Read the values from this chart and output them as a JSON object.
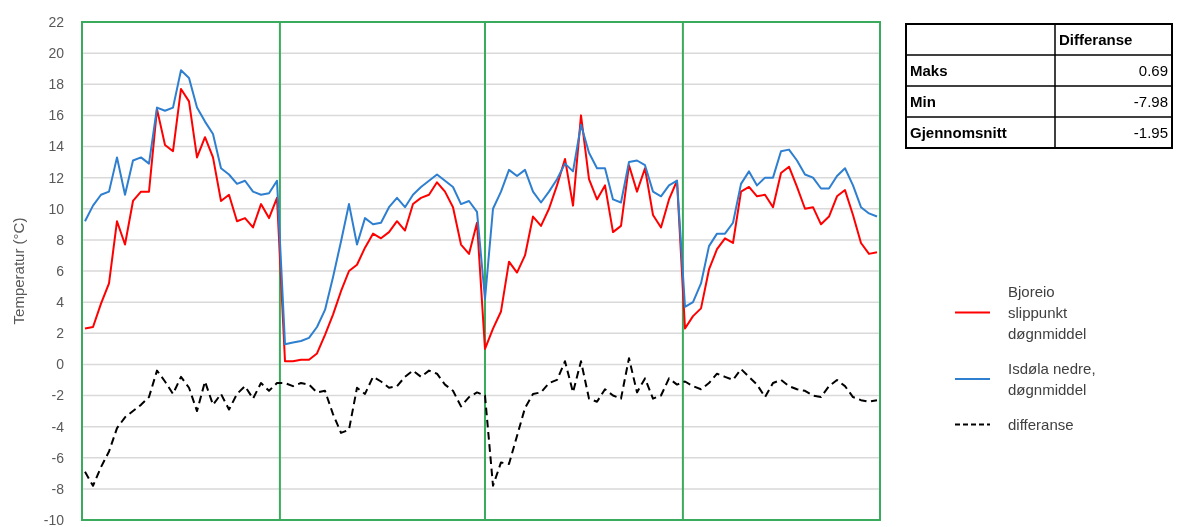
{
  "chart_data": {
    "type": "line",
    "ylabel": "Temperatur (°C)",
    "categories": [
      null,
      null,
      null,
      null,
      null,
      null,
      null,
      null,
      null,
      null,
      null,
      null,
      null,
      null,
      null,
      null,
      null,
      null,
      null,
      null,
      null,
      null,
      null,
      null,
      null,
      null,
      null,
      null,
      null,
      null,
      null,
      null,
      null,
      null,
      null,
      null,
      null,
      null,
      null,
      null,
      null,
      null,
      null,
      null,
      null,
      null,
      null,
      null,
      null,
      null,
      null,
      null,
      null,
      null,
      null,
      null,
      null,
      null,
      null,
      null,
      null,
      null,
      null,
      null,
      null,
      null,
      null,
      null,
      null,
      null,
      null,
      null,
      null,
      null,
      null,
      null,
      null,
      null,
      null,
      null,
      null,
      null,
      null,
      null,
      null,
      null,
      null,
      null,
      null,
      null,
      null,
      null,
      null,
      null,
      null,
      null,
      null,
      null,
      null,
      null
    ],
    "series": [
      {
        "name": "Bjoreio slippunkt døgnmiddel",
        "color": "#ff0000",
        "line_style": "solid",
        "values": [
          2.3,
          2.4,
          3.9,
          5.2,
          9.2,
          7.7,
          10.5,
          11.1,
          11.1,
          16.4,
          14.1,
          13.7,
          17.7,
          16.9,
          13.3,
          14.6,
          13.3,
          10.5,
          10.9,
          9.2,
          9.4,
          8.8,
          10.3,
          9.4,
          10.7,
          0.2,
          0.2,
          0.3,
          0.3,
          0.7,
          1.9,
          3.2,
          4.7,
          6.0,
          6.4,
          7.5,
          8.4,
          8.1,
          8.5,
          9.2,
          8.6,
          10.3,
          10.7,
          10.9,
          11.7,
          11.1,
          10.1,
          7.7,
          7.1,
          9.1,
          1.0,
          2.3,
          3.4,
          6.6,
          5.9,
          7.0,
          9.5,
          8.9,
          10.0,
          11.5,
          13.2,
          10.2,
          16.0,
          11.9,
          10.6,
          11.5,
          8.5,
          8.9,
          12.8,
          11.1,
          12.6,
          9.6,
          8.8,
          10.6,
          11.8,
          2.3,
          3.1,
          3.6,
          6.1,
          7.4,
          8.1,
          7.8,
          11.1,
          11.4,
          10.8,
          10.9,
          10.1,
          12.3,
          12.7,
          11.4,
          10.0,
          10.1,
          9.0,
          9.5,
          10.8,
          11.2,
          9.6,
          7.8,
          7.1,
          7.2
        ]
      },
      {
        "name": "Isdøla nedre, døgnmiddel",
        "color": "#2e7fd0",
        "line_style": "solid",
        "values": [
          9.2,
          10.2,
          10.9,
          11.1,
          13.3,
          10.9,
          13.1,
          13.3,
          12.9,
          16.5,
          16.3,
          16.5,
          18.9,
          18.4,
          16.5,
          15.6,
          14.8,
          12.6,
          12.2,
          11.6,
          11.8,
          11.1,
          10.9,
          11.0,
          11.8,
          1.3,
          1.4,
          1.5,
          1.7,
          2.4,
          3.5,
          5.6,
          7.9,
          10.3,
          7.7,
          9.4,
          9.0,
          9.1,
          10.1,
          10.7,
          10.1,
          10.9,
          11.4,
          11.8,
          12.2,
          11.8,
          11.4,
          10.3,
          10.5,
          9.8,
          4.2,
          10.0,
          11.1,
          12.5,
          12.1,
          12.5,
          11.1,
          10.4,
          11.1,
          11.9,
          12.9,
          12.4,
          15.4,
          13.6,
          12.6,
          12.6,
          10.6,
          10.4,
          13.0,
          13.1,
          12.8,
          11.1,
          10.8,
          11.5,
          11.8,
          3.7,
          4.0,
          5.2,
          7.6,
          8.4,
          8.4,
          9.1,
          11.6,
          12.4,
          11.5,
          12.0,
          12.0,
          13.7,
          13.8,
          13.1,
          12.2,
          12.0,
          11.3,
          11.3,
          12.1,
          12.6,
          11.5,
          10.1,
          9.7,
          9.5
        ]
      },
      {
        "name": "differanse",
        "color": "#000000",
        "line_style": "dashed",
        "values": [
          -6.9,
          -7.8,
          -6.6,
          -5.6,
          -4.1,
          -3.4,
          -3.0,
          -2.6,
          -2.1,
          -0.4,
          -1.1,
          -1.9,
          -0.8,
          -1.5,
          -3.0,
          -1.1,
          -2.6,
          -1.9,
          -2.9,
          -1.9,
          -1.4,
          -2.2,
          -1.2,
          -1.7,
          -1.2,
          -1.2,
          -1.4,
          -1.2,
          -1.3,
          -1.8,
          -1.7,
          -3.2,
          -4.4,
          -4.2,
          -1.5,
          -1.9,
          -0.8,
          -1.1,
          -1.5,
          -1.4,
          -0.8,
          -0.4,
          -0.8,
          -0.4,
          -0.6,
          -1.3,
          -1.7,
          -2.7,
          -2.1,
          -1.8,
          -2.0,
          -7.8,
          -6.3,
          -6.4,
          -4.6,
          -2.8,
          -1.9,
          -1.8,
          -1.2,
          -1.0,
          0.2,
          -1.8,
          0.2,
          -2.2,
          -2.4,
          -1.6,
          -2.0,
          -2.2,
          0.4,
          -1.8,
          -0.9,
          -2.2,
          -2.0,
          -0.9,
          -1.3,
          -1.1,
          -1.4,
          -1.6,
          -1.2,
          -0.6,
          -0.8,
          -1.0,
          -0.3,
          -0.8,
          -1.3,
          -2.1,
          -1.2,
          -1.0,
          -1.4,
          -1.6,
          -1.7,
          -2.0,
          -2.1,
          -1.4,
          -1.0,
          -1.4,
          -2.1,
          -2.3,
          -2.4,
          -2.3
        ]
      }
    ],
    "ylim": [
      -10,
      22
    ],
    "yticks": [
      -10,
      -8,
      -6,
      -4,
      -2,
      0,
      2,
      4,
      6,
      8,
      10,
      12,
      14,
      16,
      18,
      20,
      22
    ],
    "tick_labels": "y",
    "grid": "y",
    "legend": "right",
    "annotations": [
      "Differanse",
      "Maks",
      "0.69",
      "Min",
      "-7.98",
      "Gjennomsnitt",
      "-1.95"
    ]
  }
}
